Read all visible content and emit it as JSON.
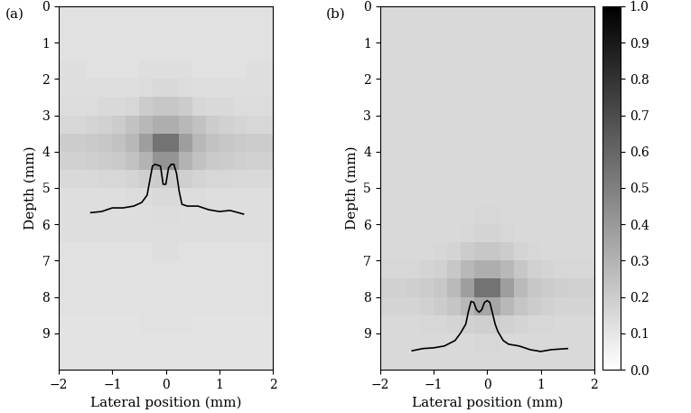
{
  "chart_data": [
    {
      "type": "heatmap",
      "panel_label": "(a)",
      "xlabel": "Lateral position (mm)",
      "ylabel": "Depth (mm)",
      "xlim": [
        -2,
        2
      ],
      "ylim": [
        10,
        0
      ],
      "xticks": [
        {
          "value": -2,
          "label": "−2"
        },
        {
          "value": -1,
          "label": "−1"
        },
        0,
        1,
        2
      ],
      "yticks": [
        0,
        1,
        2,
        3,
        4,
        5,
        6,
        7,
        8,
        9
      ],
      "x_edges": [
        -2.0,
        -1.75,
        -1.5,
        -1.25,
        -1.0,
        -0.75,
        -0.5,
        -0.25,
        0.0,
        0.25,
        0.5,
        0.75,
        1.0,
        1.25,
        1.5,
        1.75,
        2.0
      ],
      "y_edges": [
        0.0,
        0.5,
        1.0,
        1.5,
        2.0,
        2.5,
        3.0,
        3.5,
        4.0,
        4.5,
        5.0,
        5.5,
        6.0,
        6.5,
        7.0,
        7.5,
        8.0,
        8.5,
        9.0,
        9.5,
        10.0
      ],
      "cells": [
        [
          0.12,
          0.12,
          0.12,
          0.12,
          0.12,
          0.12,
          0.12,
          0.12,
          0.12,
          0.12,
          0.12,
          0.12,
          0.12,
          0.12,
          0.12,
          0.12
        ],
        [
          0.12,
          0.12,
          0.12,
          0.12,
          0.12,
          0.12,
          0.12,
          0.12,
          0.12,
          0.12,
          0.12,
          0.12,
          0.12,
          0.12,
          0.12,
          0.12
        ],
        [
          0.12,
          0.12,
          0.12,
          0.12,
          0.12,
          0.12,
          0.12,
          0.12,
          0.12,
          0.12,
          0.12,
          0.12,
          0.12,
          0.12,
          0.12,
          0.12
        ],
        [
          0.13,
          0.13,
          0.12,
          0.12,
          0.12,
          0.12,
          0.13,
          0.13,
          0.13,
          0.13,
          0.12,
          0.12,
          0.12,
          0.12,
          0.13,
          0.13
        ],
        [
          0.13,
          0.13,
          0.13,
          0.13,
          0.13,
          0.13,
          0.14,
          0.15,
          0.15,
          0.14,
          0.13,
          0.13,
          0.13,
          0.13,
          0.13,
          0.13
        ],
        [
          0.14,
          0.14,
          0.14,
          0.15,
          0.15,
          0.16,
          0.2,
          0.22,
          0.22,
          0.2,
          0.16,
          0.15,
          0.15,
          0.14,
          0.14,
          0.14
        ],
        [
          0.16,
          0.16,
          0.17,
          0.18,
          0.2,
          0.24,
          0.28,
          0.32,
          0.32,
          0.28,
          0.24,
          0.2,
          0.18,
          0.17,
          0.16,
          0.16
        ],
        [
          0.2,
          0.2,
          0.21,
          0.22,
          0.24,
          0.28,
          0.38,
          0.55,
          0.55,
          0.38,
          0.28,
          0.24,
          0.22,
          0.21,
          0.2,
          0.2
        ],
        [
          0.18,
          0.18,
          0.19,
          0.2,
          0.21,
          0.24,
          0.3,
          0.42,
          0.42,
          0.3,
          0.24,
          0.21,
          0.2,
          0.19,
          0.18,
          0.18
        ],
        [
          0.15,
          0.15,
          0.15,
          0.16,
          0.16,
          0.17,
          0.19,
          0.2,
          0.2,
          0.19,
          0.17,
          0.16,
          0.16,
          0.15,
          0.15,
          0.15
        ],
        [
          0.13,
          0.13,
          0.13,
          0.13,
          0.13,
          0.14,
          0.14,
          0.15,
          0.15,
          0.14,
          0.14,
          0.13,
          0.13,
          0.13,
          0.13,
          0.13
        ],
        [
          0.13,
          0.13,
          0.13,
          0.13,
          0.13,
          0.13,
          0.13,
          0.14,
          0.14,
          0.13,
          0.13,
          0.13,
          0.13,
          0.13,
          0.13,
          0.13
        ],
        [
          0.13,
          0.13,
          0.13,
          0.13,
          0.13,
          0.13,
          0.13,
          0.13,
          0.13,
          0.13,
          0.13,
          0.13,
          0.13,
          0.13,
          0.13,
          0.13
        ],
        [
          0.12,
          0.12,
          0.12,
          0.12,
          0.12,
          0.12,
          0.12,
          0.13,
          0.13,
          0.12,
          0.12,
          0.12,
          0.12,
          0.12,
          0.12,
          0.12
        ],
        [
          0.12,
          0.12,
          0.12,
          0.12,
          0.12,
          0.12,
          0.12,
          0.12,
          0.12,
          0.12,
          0.12,
          0.12,
          0.12,
          0.12,
          0.12,
          0.12
        ],
        [
          0.12,
          0.12,
          0.12,
          0.12,
          0.12,
          0.12,
          0.12,
          0.12,
          0.12,
          0.12,
          0.12,
          0.12,
          0.12,
          0.12,
          0.12,
          0.12
        ],
        [
          0.12,
          0.12,
          0.12,
          0.12,
          0.12,
          0.12,
          0.12,
          0.12,
          0.12,
          0.12,
          0.12,
          0.12,
          0.12,
          0.12,
          0.12,
          0.12
        ],
        [
          0.11,
          0.11,
          0.11,
          0.11,
          0.11,
          0.11,
          0.12,
          0.12,
          0.12,
          0.12,
          0.11,
          0.11,
          0.11,
          0.11,
          0.11,
          0.11
        ],
        [
          0.11,
          0.11,
          0.11,
          0.11,
          0.11,
          0.11,
          0.11,
          0.11,
          0.11,
          0.11,
          0.11,
          0.11,
          0.11,
          0.11,
          0.11,
          0.11
        ],
        [
          0.11,
          0.11,
          0.11,
          0.11,
          0.11,
          0.11,
          0.11,
          0.11,
          0.11,
          0.11,
          0.11,
          0.11,
          0.11,
          0.11,
          0.11,
          0.11
        ]
      ],
      "profile": {
        "color": "#000000",
        "x": [
          -1.4,
          -1.2,
          -1.0,
          -0.8,
          -0.6,
          -0.45,
          -0.35,
          -0.3,
          -0.25,
          -0.2,
          -0.1,
          -0.05,
          0,
          0.05,
          0.1,
          0.15,
          0.2,
          0.25,
          0.3,
          0.4,
          0.6,
          0.8,
          1.0,
          1.2,
          1.45
        ],
        "y": [
          5.68,
          5.65,
          5.55,
          5.55,
          5.5,
          5.4,
          5.2,
          4.8,
          4.4,
          4.35,
          4.4,
          4.9,
          4.9,
          4.45,
          4.35,
          4.35,
          4.6,
          5.1,
          5.45,
          5.5,
          5.5,
          5.6,
          5.65,
          5.62,
          5.72
        ]
      }
    },
    {
      "type": "heatmap",
      "panel_label": "(b)",
      "xlabel": "Lateral position (mm)",
      "ylabel": "Depth (mm)",
      "xlim": [
        -2,
        2
      ],
      "ylim": [
        10,
        0
      ],
      "xticks": [
        {
          "value": -2,
          "label": "−2"
        },
        {
          "value": -1,
          "label": "−1"
        },
        0,
        1,
        2
      ],
      "yticks": [
        0,
        1,
        2,
        3,
        4,
        5,
        6,
        7,
        8,
        9
      ],
      "x_edges": [
        -2.0,
        -1.75,
        -1.5,
        -1.25,
        -1.0,
        -0.75,
        -0.5,
        -0.25,
        0.0,
        0.25,
        0.5,
        0.75,
        1.0,
        1.25,
        1.5,
        1.75,
        2.0
      ],
      "y_edges": [
        0.0,
        0.5,
        1.0,
        1.5,
        2.0,
        2.5,
        3.0,
        3.5,
        4.0,
        4.5,
        5.0,
        5.5,
        6.0,
        6.5,
        7.0,
        7.5,
        8.0,
        8.5,
        9.0,
        9.5,
        10.0
      ],
      "cells": [
        [
          0.15,
          0.15,
          0.15,
          0.15,
          0.15,
          0.15,
          0.15,
          0.15,
          0.15,
          0.15,
          0.15,
          0.15,
          0.15,
          0.15,
          0.15,
          0.15
        ],
        [
          0.15,
          0.15,
          0.15,
          0.15,
          0.15,
          0.15,
          0.15,
          0.15,
          0.15,
          0.15,
          0.15,
          0.15,
          0.15,
          0.15,
          0.15,
          0.15
        ],
        [
          0.15,
          0.15,
          0.15,
          0.15,
          0.15,
          0.15,
          0.15,
          0.15,
          0.15,
          0.15,
          0.15,
          0.15,
          0.15,
          0.15,
          0.15,
          0.15
        ],
        [
          0.15,
          0.15,
          0.15,
          0.15,
          0.15,
          0.15,
          0.15,
          0.15,
          0.15,
          0.15,
          0.15,
          0.15,
          0.15,
          0.15,
          0.15,
          0.15
        ],
        [
          0.15,
          0.15,
          0.15,
          0.15,
          0.15,
          0.15,
          0.15,
          0.15,
          0.15,
          0.15,
          0.15,
          0.15,
          0.15,
          0.15,
          0.15,
          0.15
        ],
        [
          0.15,
          0.15,
          0.15,
          0.15,
          0.15,
          0.15,
          0.15,
          0.15,
          0.15,
          0.15,
          0.15,
          0.15,
          0.15,
          0.15,
          0.15,
          0.15
        ],
        [
          0.15,
          0.15,
          0.15,
          0.15,
          0.15,
          0.15,
          0.15,
          0.15,
          0.15,
          0.15,
          0.15,
          0.15,
          0.15,
          0.15,
          0.15,
          0.15
        ],
        [
          0.15,
          0.15,
          0.15,
          0.15,
          0.15,
          0.15,
          0.15,
          0.15,
          0.15,
          0.15,
          0.15,
          0.15,
          0.15,
          0.15,
          0.15,
          0.15
        ],
        [
          0.15,
          0.15,
          0.15,
          0.15,
          0.15,
          0.15,
          0.15,
          0.15,
          0.15,
          0.15,
          0.15,
          0.15,
          0.15,
          0.15,
          0.15,
          0.15
        ],
        [
          0.15,
          0.15,
          0.15,
          0.15,
          0.15,
          0.15,
          0.15,
          0.15,
          0.15,
          0.15,
          0.15,
          0.15,
          0.15,
          0.15,
          0.15,
          0.15
        ],
        [
          0.15,
          0.15,
          0.15,
          0.15,
          0.15,
          0.15,
          0.15,
          0.15,
          0.15,
          0.15,
          0.15,
          0.15,
          0.15,
          0.15,
          0.15,
          0.15
        ],
        [
          0.15,
          0.15,
          0.15,
          0.15,
          0.15,
          0.15,
          0.15,
          0.16,
          0.16,
          0.15,
          0.15,
          0.15,
          0.15,
          0.15,
          0.15,
          0.15
        ],
        [
          0.15,
          0.15,
          0.15,
          0.15,
          0.15,
          0.15,
          0.16,
          0.17,
          0.17,
          0.16,
          0.15,
          0.15,
          0.15,
          0.15,
          0.15,
          0.15
        ],
        [
          0.15,
          0.15,
          0.15,
          0.15,
          0.16,
          0.17,
          0.2,
          0.22,
          0.22,
          0.2,
          0.17,
          0.16,
          0.15,
          0.15,
          0.15,
          0.15
        ],
        [
          0.16,
          0.16,
          0.16,
          0.17,
          0.18,
          0.22,
          0.28,
          0.32,
          0.32,
          0.28,
          0.22,
          0.18,
          0.17,
          0.16,
          0.16,
          0.16
        ],
        [
          0.18,
          0.18,
          0.19,
          0.2,
          0.22,
          0.27,
          0.38,
          0.55,
          0.55,
          0.38,
          0.27,
          0.22,
          0.2,
          0.19,
          0.18,
          0.18
        ],
        [
          0.17,
          0.17,
          0.17,
          0.18,
          0.2,
          0.23,
          0.28,
          0.35,
          0.35,
          0.28,
          0.23,
          0.2,
          0.18,
          0.17,
          0.17,
          0.17
        ],
        [
          0.15,
          0.15,
          0.15,
          0.16,
          0.16,
          0.17,
          0.18,
          0.19,
          0.19,
          0.18,
          0.17,
          0.16,
          0.16,
          0.15,
          0.15,
          0.15
        ],
        [
          0.15,
          0.15,
          0.15,
          0.15,
          0.15,
          0.15,
          0.15,
          0.16,
          0.16,
          0.15,
          0.15,
          0.15,
          0.15,
          0.15,
          0.15,
          0.15
        ],
        [
          0.15,
          0.15,
          0.15,
          0.15,
          0.15,
          0.15,
          0.15,
          0.15,
          0.15,
          0.15,
          0.15,
          0.15,
          0.15,
          0.15,
          0.15,
          0.15
        ]
      ],
      "profile": {
        "color": "#000000",
        "x": [
          -1.4,
          -1.2,
          -1.0,
          -0.8,
          -0.6,
          -0.5,
          -0.4,
          -0.35,
          -0.3,
          -0.25,
          -0.2,
          -0.15,
          -0.1,
          -0.05,
          0,
          0.05,
          0.1,
          0.15,
          0.2,
          0.3,
          0.4,
          0.6,
          0.8,
          1.0,
          1.2,
          1.5
        ],
        "y": [
          9.48,
          9.42,
          9.4,
          9.35,
          9.2,
          9.0,
          8.75,
          8.4,
          8.12,
          8.15,
          8.35,
          8.42,
          8.35,
          8.15,
          8.1,
          8.15,
          8.45,
          8.75,
          8.95,
          9.2,
          9.3,
          9.35,
          9.45,
          9.5,
          9.45,
          9.42
        ]
      },
      "colorbar": {
        "range": [
          0.0,
          1.0
        ],
        "ticks": [
          0.0,
          0.1,
          0.2,
          0.3,
          0.4,
          0.5,
          0.6,
          0.7,
          0.8,
          0.9,
          1.0
        ]
      }
    }
  ]
}
